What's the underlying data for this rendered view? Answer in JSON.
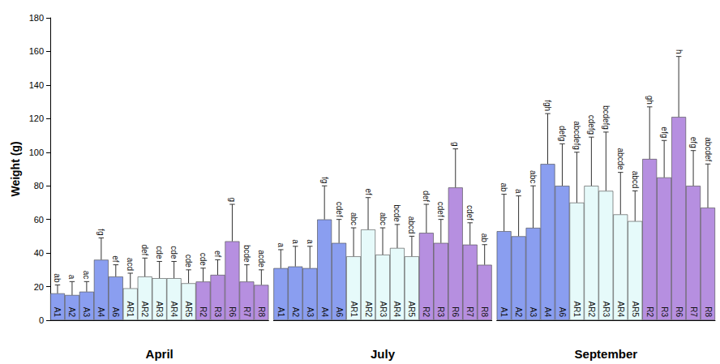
{
  "chart_data": {
    "type": "bar",
    "y_label": "Weight (g)",
    "categories": [
      "A1",
      "A2",
      "A3",
      "A4",
      "A6",
      "AR1",
      "AR2",
      "AR3",
      "AR4",
      "AR5",
      "R2",
      "R3",
      "R6",
      "R7",
      "R8"
    ],
    "colors": [
      "#8a9ef0",
      "#8a9ef0",
      "#8a9ef0",
      "#8a9ef0",
      "#8a9ef0",
      "#e6fafa",
      "#e6fafa",
      "#e6fafa",
      "#e6fafa",
      "#e6fafa",
      "#b68fe0",
      "#b68fe0",
      "#b68fe0",
      "#b68fe0",
      "#b68fe0"
    ],
    "ylim": [
      0,
      180
    ],
    "yticks": [
      0,
      20,
      40,
      60,
      80,
      100,
      120,
      140,
      160,
      180
    ],
    "grid": false,
    "series": [
      {
        "name": "April",
        "values": [
          16,
          15,
          17,
          36,
          26,
          19,
          26,
          25,
          25,
          22,
          23,
          27,
          47,
          23,
          21
        ],
        "errors": [
          5,
          8,
          6,
          13,
          7,
          9,
          11,
          10,
          10,
          8,
          8,
          9,
          22,
          10,
          9
        ],
        "letters": [
          "ab",
          "a",
          "ac",
          "fg",
          "ef",
          "acd",
          "def",
          "cde",
          "cde",
          "cde",
          "cde",
          "ef",
          "g",
          "bcde",
          "acde"
        ]
      },
      {
        "name": "July",
        "values": [
          31,
          32,
          31,
          60,
          46,
          38,
          54,
          39,
          43,
          38,
          52,
          46,
          79,
          45,
          33
        ],
        "errors": [
          11,
          12,
          13,
          20,
          14,
          17,
          19,
          16,
          14,
          12,
          17,
          14,
          23,
          13,
          12
        ],
        "letters": [
          "a",
          "a",
          "a",
          "fg",
          "cdef",
          "abc",
          "ef",
          "abc",
          "bcde",
          "abcd",
          "def",
          "cdef",
          "g",
          "cdef",
          "ab"
        ]
      },
      {
        "name": "September",
        "values": [
          53,
          50,
          55,
          93,
          80,
          70,
          80,
          77,
          63,
          59,
          96,
          85,
          121,
          80,
          67
        ],
        "errors": [
          22,
          24,
          25,
          30,
          25,
          30,
          29,
          35,
          25,
          18,
          31,
          22,
          36,
          21,
          26
        ],
        "letters": [
          "ab",
          "a",
          "abc",
          "fgh",
          "defg",
          "abcdefg",
          "cdefg",
          "bcdefg",
          "abcde",
          "abcd",
          "gh",
          "efg",
          "h",
          "efg",
          "abcdef"
        ]
      }
    ]
  }
}
